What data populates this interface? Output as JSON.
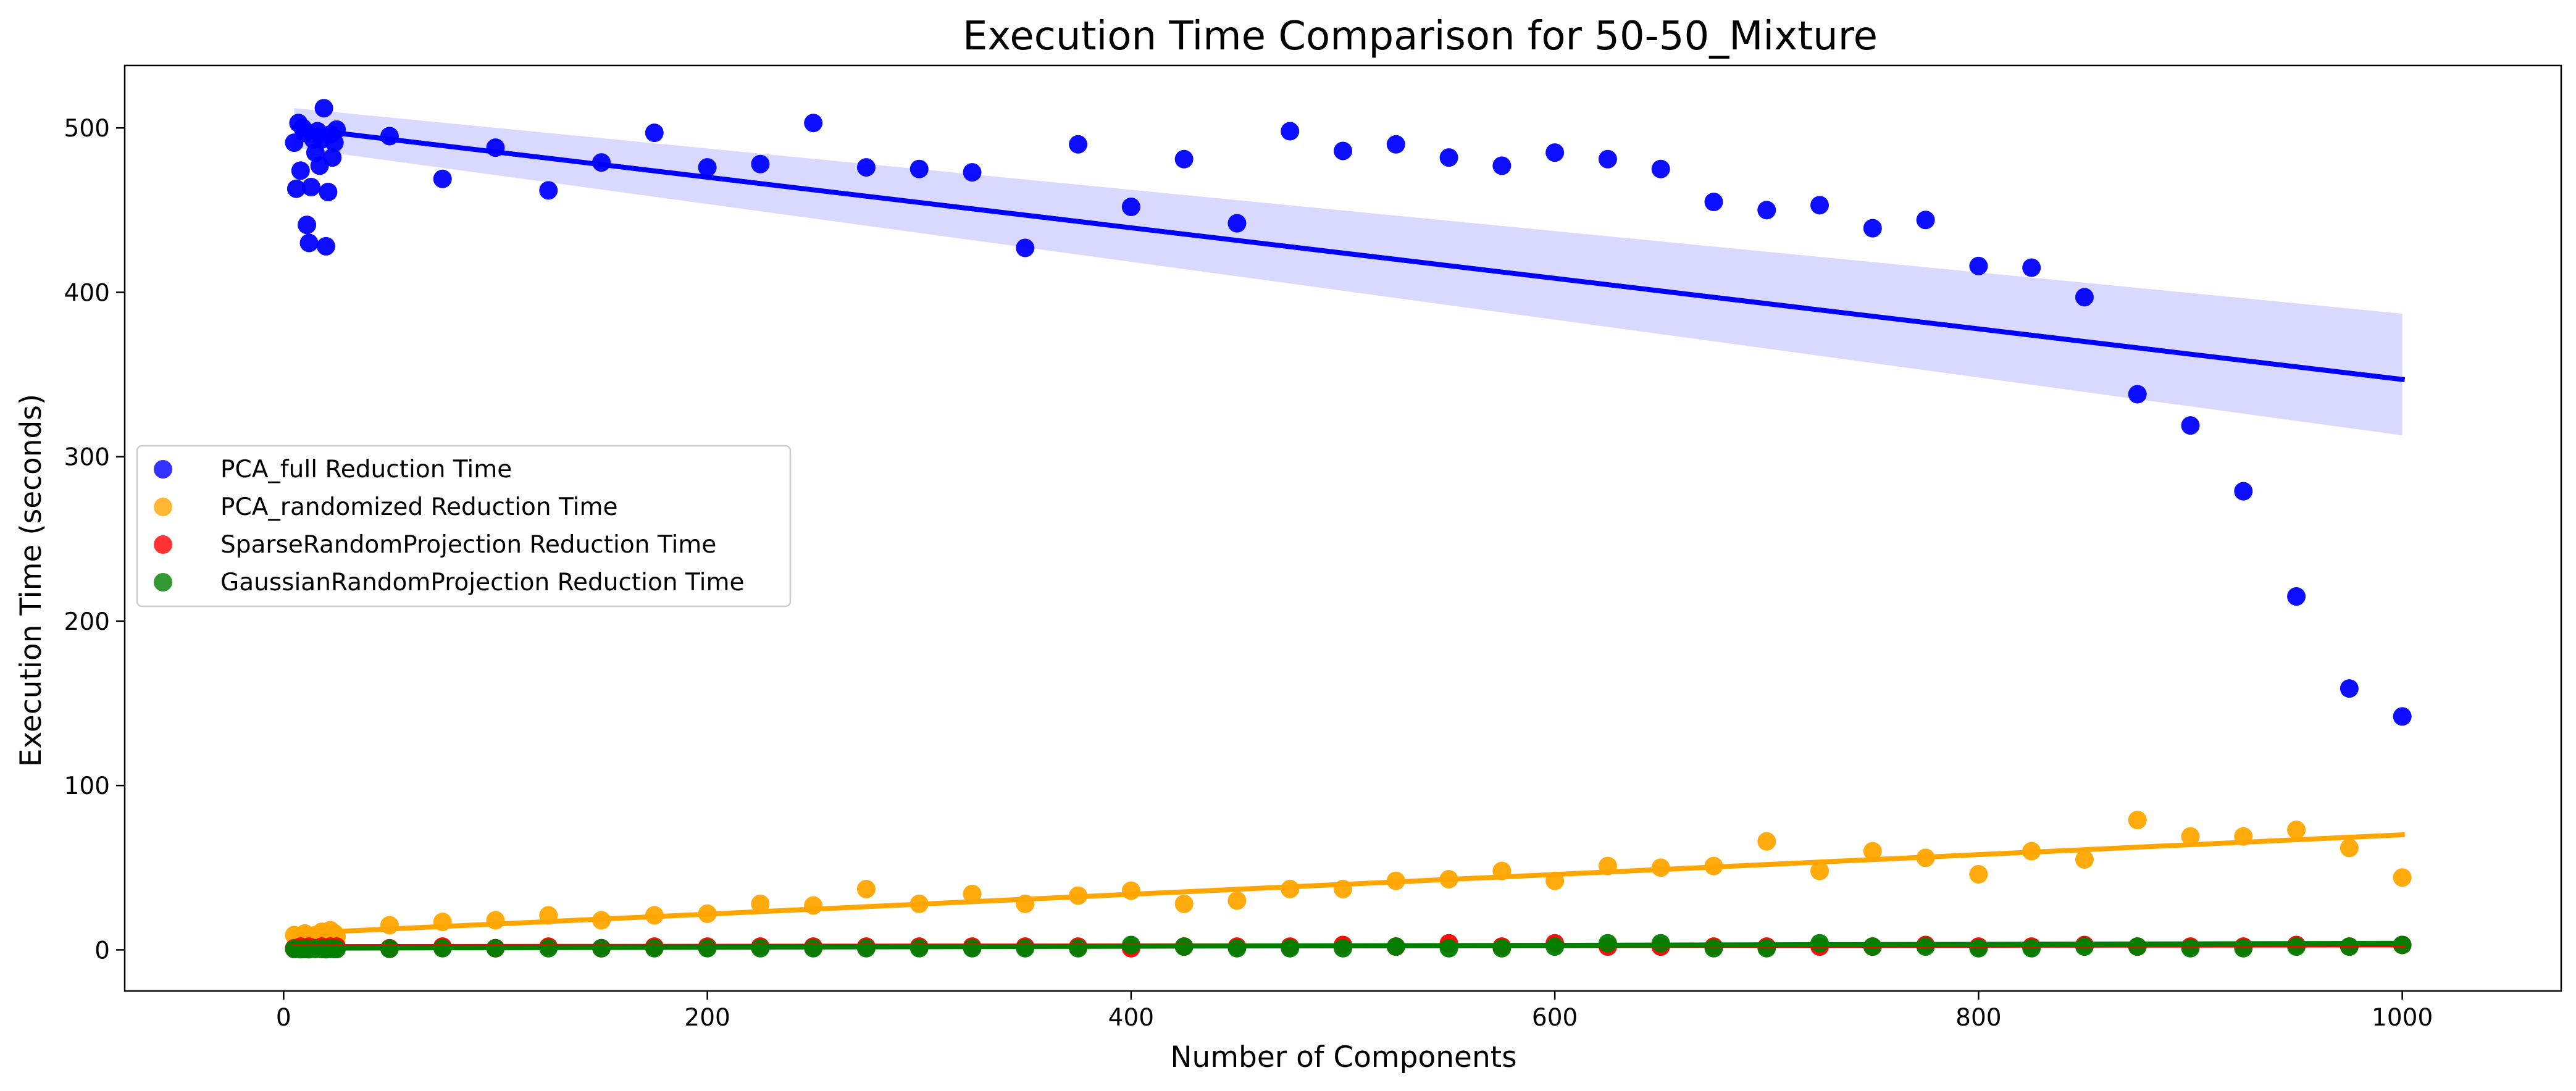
{
  "chart_data": {
    "type": "scatter",
    "title": "Execution Time Comparison for 50-50_Mixture",
    "xlabel": "Number of Components",
    "ylabel": "Execution Time (seconds)",
    "xlim": [
      -75,
      1075
    ],
    "ylim": [
      -25,
      538
    ],
    "x_ticks": [
      0,
      200,
      400,
      600,
      800,
      1000
    ],
    "y_ticks": [
      0,
      100,
      200,
      300,
      400,
      500
    ],
    "grid": false,
    "legend_position": "center-left",
    "series": [
      {
        "name": "PCA_full Reduction Time",
        "color": "#0000ff",
        "x": [
          5,
          6,
          7,
          8,
          9,
          10,
          11,
          12,
          13,
          14,
          15,
          16,
          17,
          18,
          19,
          20,
          21,
          22,
          23,
          24,
          25,
          50,
          75,
          100,
          125,
          150,
          175,
          200,
          225,
          250,
          275,
          300,
          325,
          350,
          375,
          400,
          425,
          450,
          475,
          500,
          525,
          550,
          575,
          600,
          625,
          650,
          675,
          700,
          725,
          750,
          775,
          800,
          825,
          850,
          875,
          900,
          925,
          950,
          975,
          1000
        ],
        "y": [
          491,
          463,
          503,
          474,
          500,
          497,
          441,
          430,
          464,
          493,
          485,
          498,
          477,
          493,
          512,
          428,
          461,
          496,
          482,
          491,
          499,
          495,
          469,
          488,
          462,
          479,
          497,
          476,
          478,
          503,
          476,
          475,
          473,
          427,
          490,
          452,
          481,
          442,
          498,
          486,
          490,
          482,
          477,
          485,
          481,
          475,
          455,
          450,
          453,
          439,
          444,
          416,
          415,
          397,
          338,
          319,
          279,
          215,
          159,
          142
        ],
        "trend": {
          "x": [
            5,
            1000
          ],
          "y": [
            500,
            347
          ],
          "band_lower_end": 313,
          "band_upper_end": 387
        }
      },
      {
        "name": "PCA_randomized Reduction Time",
        "color": "#ffa500",
        "x": [
          5,
          8,
          10,
          12,
          15,
          18,
          20,
          22,
          24,
          25,
          50,
          75,
          100,
          125,
          150,
          175,
          200,
          225,
          250,
          275,
          300,
          325,
          350,
          375,
          400,
          425,
          450,
          475,
          500,
          525,
          550,
          575,
          600,
          625,
          650,
          675,
          700,
          725,
          750,
          775,
          800,
          825,
          850,
          875,
          900,
          925,
          950,
          975,
          1000
        ],
        "y": [
          9,
          8,
          10,
          7,
          9,
          11,
          6,
          12,
          10,
          8,
          15,
          17,
          18,
          21,
          18,
          21,
          22,
          28,
          27,
          37,
          28,
          34,
          28,
          33,
          36,
          28,
          30,
          37,
          37,
          42,
          43,
          48,
          42,
          51,
          50,
          51,
          66,
          48,
          60,
          56,
          46,
          60,
          55,
          79,
          69,
          69,
          73,
          62,
          44
        ],
        "trend": {
          "x": [
            5,
            1000
          ],
          "y": [
            10,
            70
          ]
        }
      },
      {
        "name": "SparseRandomProjection Reduction Time",
        "color": "#ff0000",
        "x": [
          5,
          8,
          10,
          12,
          15,
          18,
          20,
          22,
          24,
          25,
          50,
          75,
          100,
          125,
          150,
          175,
          200,
          225,
          250,
          275,
          300,
          325,
          350,
          375,
          400,
          425,
          450,
          475,
          500,
          525,
          550,
          575,
          600,
          625,
          650,
          675,
          700,
          725,
          750,
          775,
          800,
          825,
          850,
          875,
          900,
          925,
          950,
          975,
          1000
        ],
        "y": [
          1,
          2,
          1,
          2,
          1,
          2,
          1,
          2,
          1,
          2,
          1,
          2,
          1,
          2,
          1,
          2,
          2,
          2,
          2,
          2,
          2,
          2,
          2,
          2,
          1,
          2,
          2,
          2,
          3,
          2,
          4,
          2,
          4,
          2,
          2,
          2,
          2,
          2,
          2,
          3,
          2,
          2,
          3,
          2,
          2,
          2,
          3,
          2,
          3
        ],
        "trend": {
          "x": [
            5,
            1000
          ],
          "y": [
            2,
            3
          ]
        }
      },
      {
        "name": "GaussianRandomProjection Reduction Time",
        "color": "#008000",
        "x": [
          5,
          8,
          10,
          12,
          15,
          18,
          20,
          22,
          24,
          25,
          50,
          75,
          100,
          125,
          150,
          175,
          200,
          225,
          250,
          275,
          300,
          325,
          350,
          375,
          400,
          425,
          450,
          475,
          500,
          525,
          550,
          575,
          600,
          625,
          650,
          675,
          700,
          725,
          750,
          775,
          800,
          825,
          850,
          875,
          900,
          925,
          950,
          975,
          1000
        ],
        "y": [
          0.5,
          0.4,
          0.5,
          0.4,
          0.6,
          0.5,
          0.4,
          0.6,
          0.5,
          0.5,
          0.6,
          1,
          1,
          1,
          1,
          1,
          1,
          1,
          1,
          1,
          1,
          1,
          1,
          1,
          3,
          2,
          1,
          1,
          1,
          2,
          1,
          1,
          2,
          4,
          4,
          1,
          1,
          4,
          2,
          2,
          1,
          1,
          2,
          2,
          1,
          1,
          2,
          2,
          3
        ],
        "trend": {
          "x": [
            5,
            1000
          ],
          "y": [
            1,
            4
          ]
        }
      }
    ]
  }
}
